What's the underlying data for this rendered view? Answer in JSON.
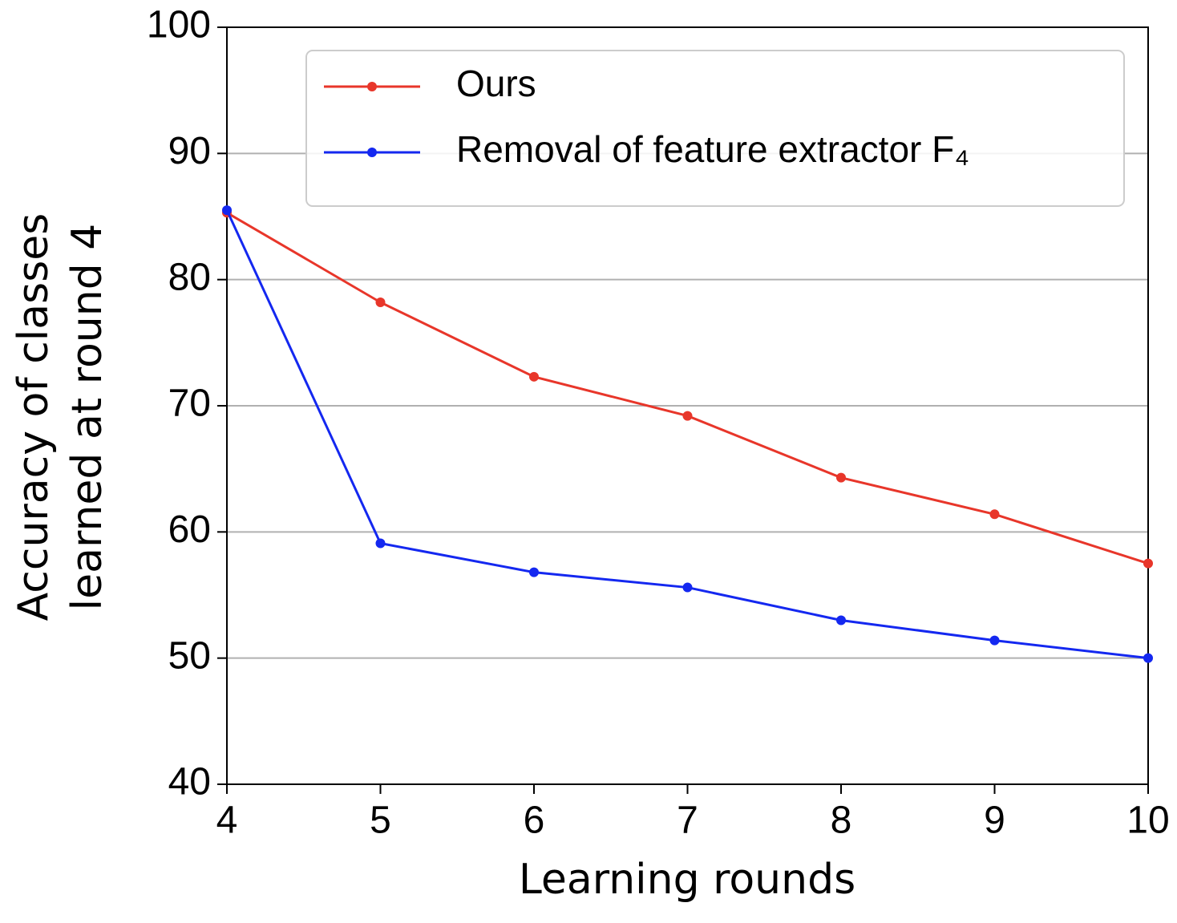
{
  "chart_data": {
    "type": "line",
    "x_label": "Learning rounds",
    "y_label": [
      "Accuracy of classes",
      "learned at round 4"
    ],
    "x": [
      4,
      5,
      6,
      7,
      8,
      9,
      10
    ],
    "series": [
      {
        "name": "Ours",
        "color": "#e8362a",
        "values": [
          85.3,
          78.2,
          72.3,
          69.2,
          64.3,
          61.4,
          57.5
        ]
      },
      {
        "name": "Removal of feature extractor F₄",
        "color": "#1428f0",
        "values": [
          85.5,
          59.1,
          56.8,
          55.6,
          53.0,
          51.4,
          50.0
        ]
      }
    ],
    "xlim": [
      4,
      10
    ],
    "xticks": [
      4,
      5,
      6,
      7,
      8,
      9,
      10
    ],
    "ylim": [
      40,
      100
    ],
    "yticks": [
      40,
      50,
      60,
      70,
      80,
      90,
      100
    ],
    "grid": true,
    "legend": "upper right"
  }
}
